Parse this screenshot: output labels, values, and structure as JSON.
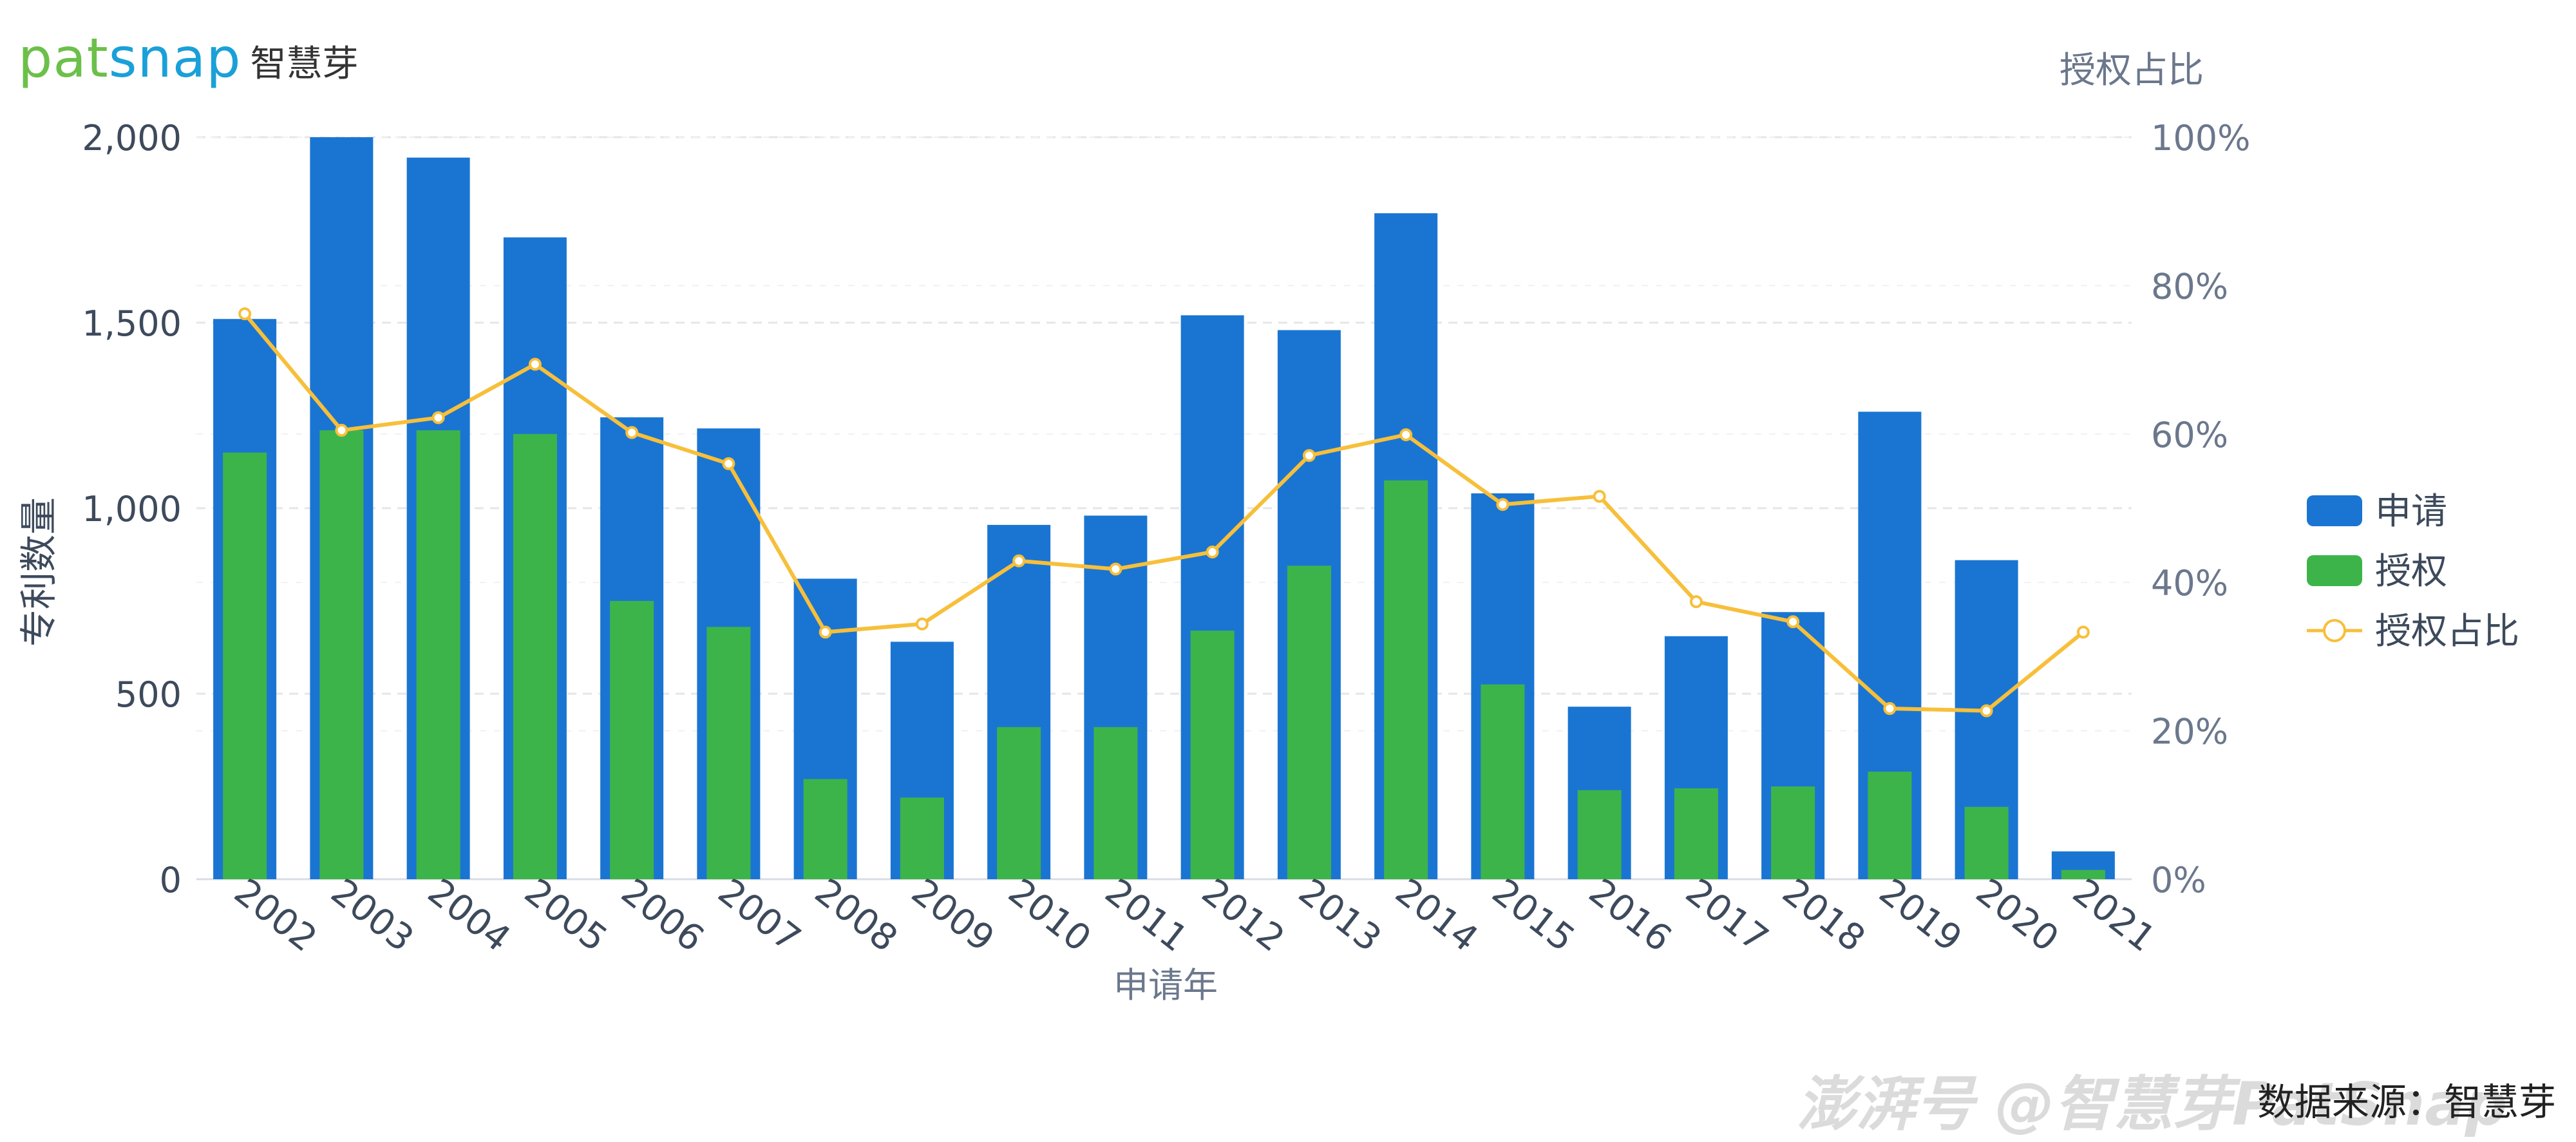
{
  "logo": {
    "brand_pat": "pat",
    "brand_snap": "snap",
    "brand_cn": "智慧芽"
  },
  "watermark": "澎湃号 @智慧芽PatSnap",
  "source_note": "数据来源：智慧芽",
  "colors": {
    "apply": "#1a75d2",
    "grant": "#3db44a",
    "ratio": "#f7bf3a",
    "axis_text": "#55627a",
    "grid": "#e6e6e6"
  },
  "chart_data": {
    "type": "bar",
    "categories": [
      "2002",
      "2003",
      "2004",
      "2005",
      "2006",
      "2007",
      "2008",
      "2009",
      "2010",
      "2011",
      "2012",
      "2013",
      "2014",
      "2015",
      "2016",
      "2017",
      "2018",
      "2019",
      "2020",
      "2021"
    ],
    "series": [
      {
        "name": "申请",
        "type": "bar",
        "values": [
          1510,
          2000,
          1945,
          1730,
          1245,
          1215,
          810,
          640,
          955,
          980,
          1520,
          1480,
          1795,
          1040,
          465,
          655,
          720,
          1260,
          860,
          75
        ]
      },
      {
        "name": "授权",
        "type": "bar",
        "values": [
          1150,
          1210,
          1210,
          1200,
          750,
          680,
          270,
          220,
          410,
          410,
          670,
          845,
          1075,
          525,
          240,
          245,
          250,
          290,
          195,
          25
        ]
      },
      {
        "name": "授权占比",
        "type": "line",
        "axis": "right",
        "values": [
          76.2,
          60.5,
          62.2,
          69.4,
          60.2,
          56.0,
          33.3,
          34.4,
          42.9,
          41.8,
          44.1,
          57.1,
          59.9,
          50.5,
          51.6,
          37.4,
          34.7,
          23.0,
          22.7,
          33.3
        ]
      }
    ],
    "xlabel": "申请年",
    "ylabel": "专利数量",
    "y2label": "授权占比",
    "ylim": [
      0,
      2000
    ],
    "y2lim": [
      0,
      100
    ],
    "yticks": [
      "0",
      "500",
      "1,000",
      "1,500",
      "2,000"
    ],
    "y2ticks": [
      "0%",
      "20%",
      "40%",
      "60%",
      "80%",
      "100%"
    ],
    "grid": true,
    "legend": {
      "position": "right",
      "items": [
        "申请",
        "授权",
        "授权占比"
      ]
    }
  }
}
